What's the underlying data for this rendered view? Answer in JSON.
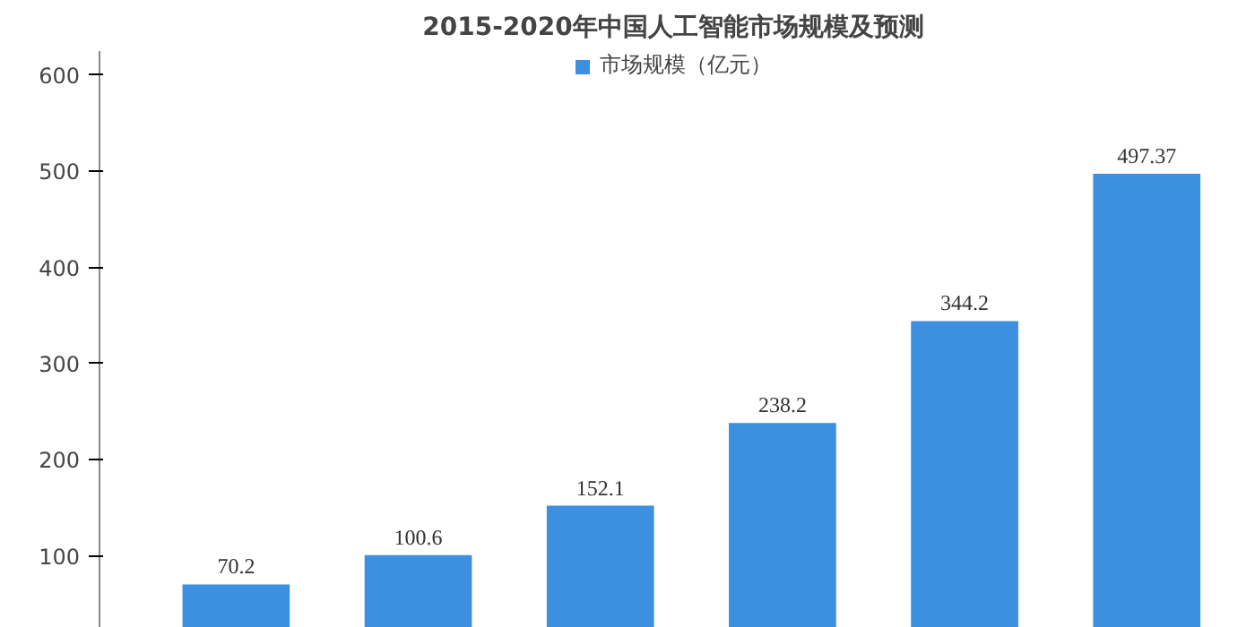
{
  "chart_data": {
    "type": "bar",
    "title": "2015-2020年中国人工智能市场规模及预测",
    "categories": [
      null,
      null,
      null,
      null,
      null,
      null
    ],
    "series": [
      {
        "name": "市场规模（亿元）",
        "color": "#3d8fe0",
        "values": [
          70.2,
          100.6,
          152.1,
          238.2,
          344.2,
          497.37
        ]
      }
    ],
    "ylim": [
      25,
      625
    ],
    "yticks": [
      100,
      200,
      300,
      400,
      500,
      600
    ],
    "data_labels": true,
    "legend": "top",
    "grid": false
  }
}
